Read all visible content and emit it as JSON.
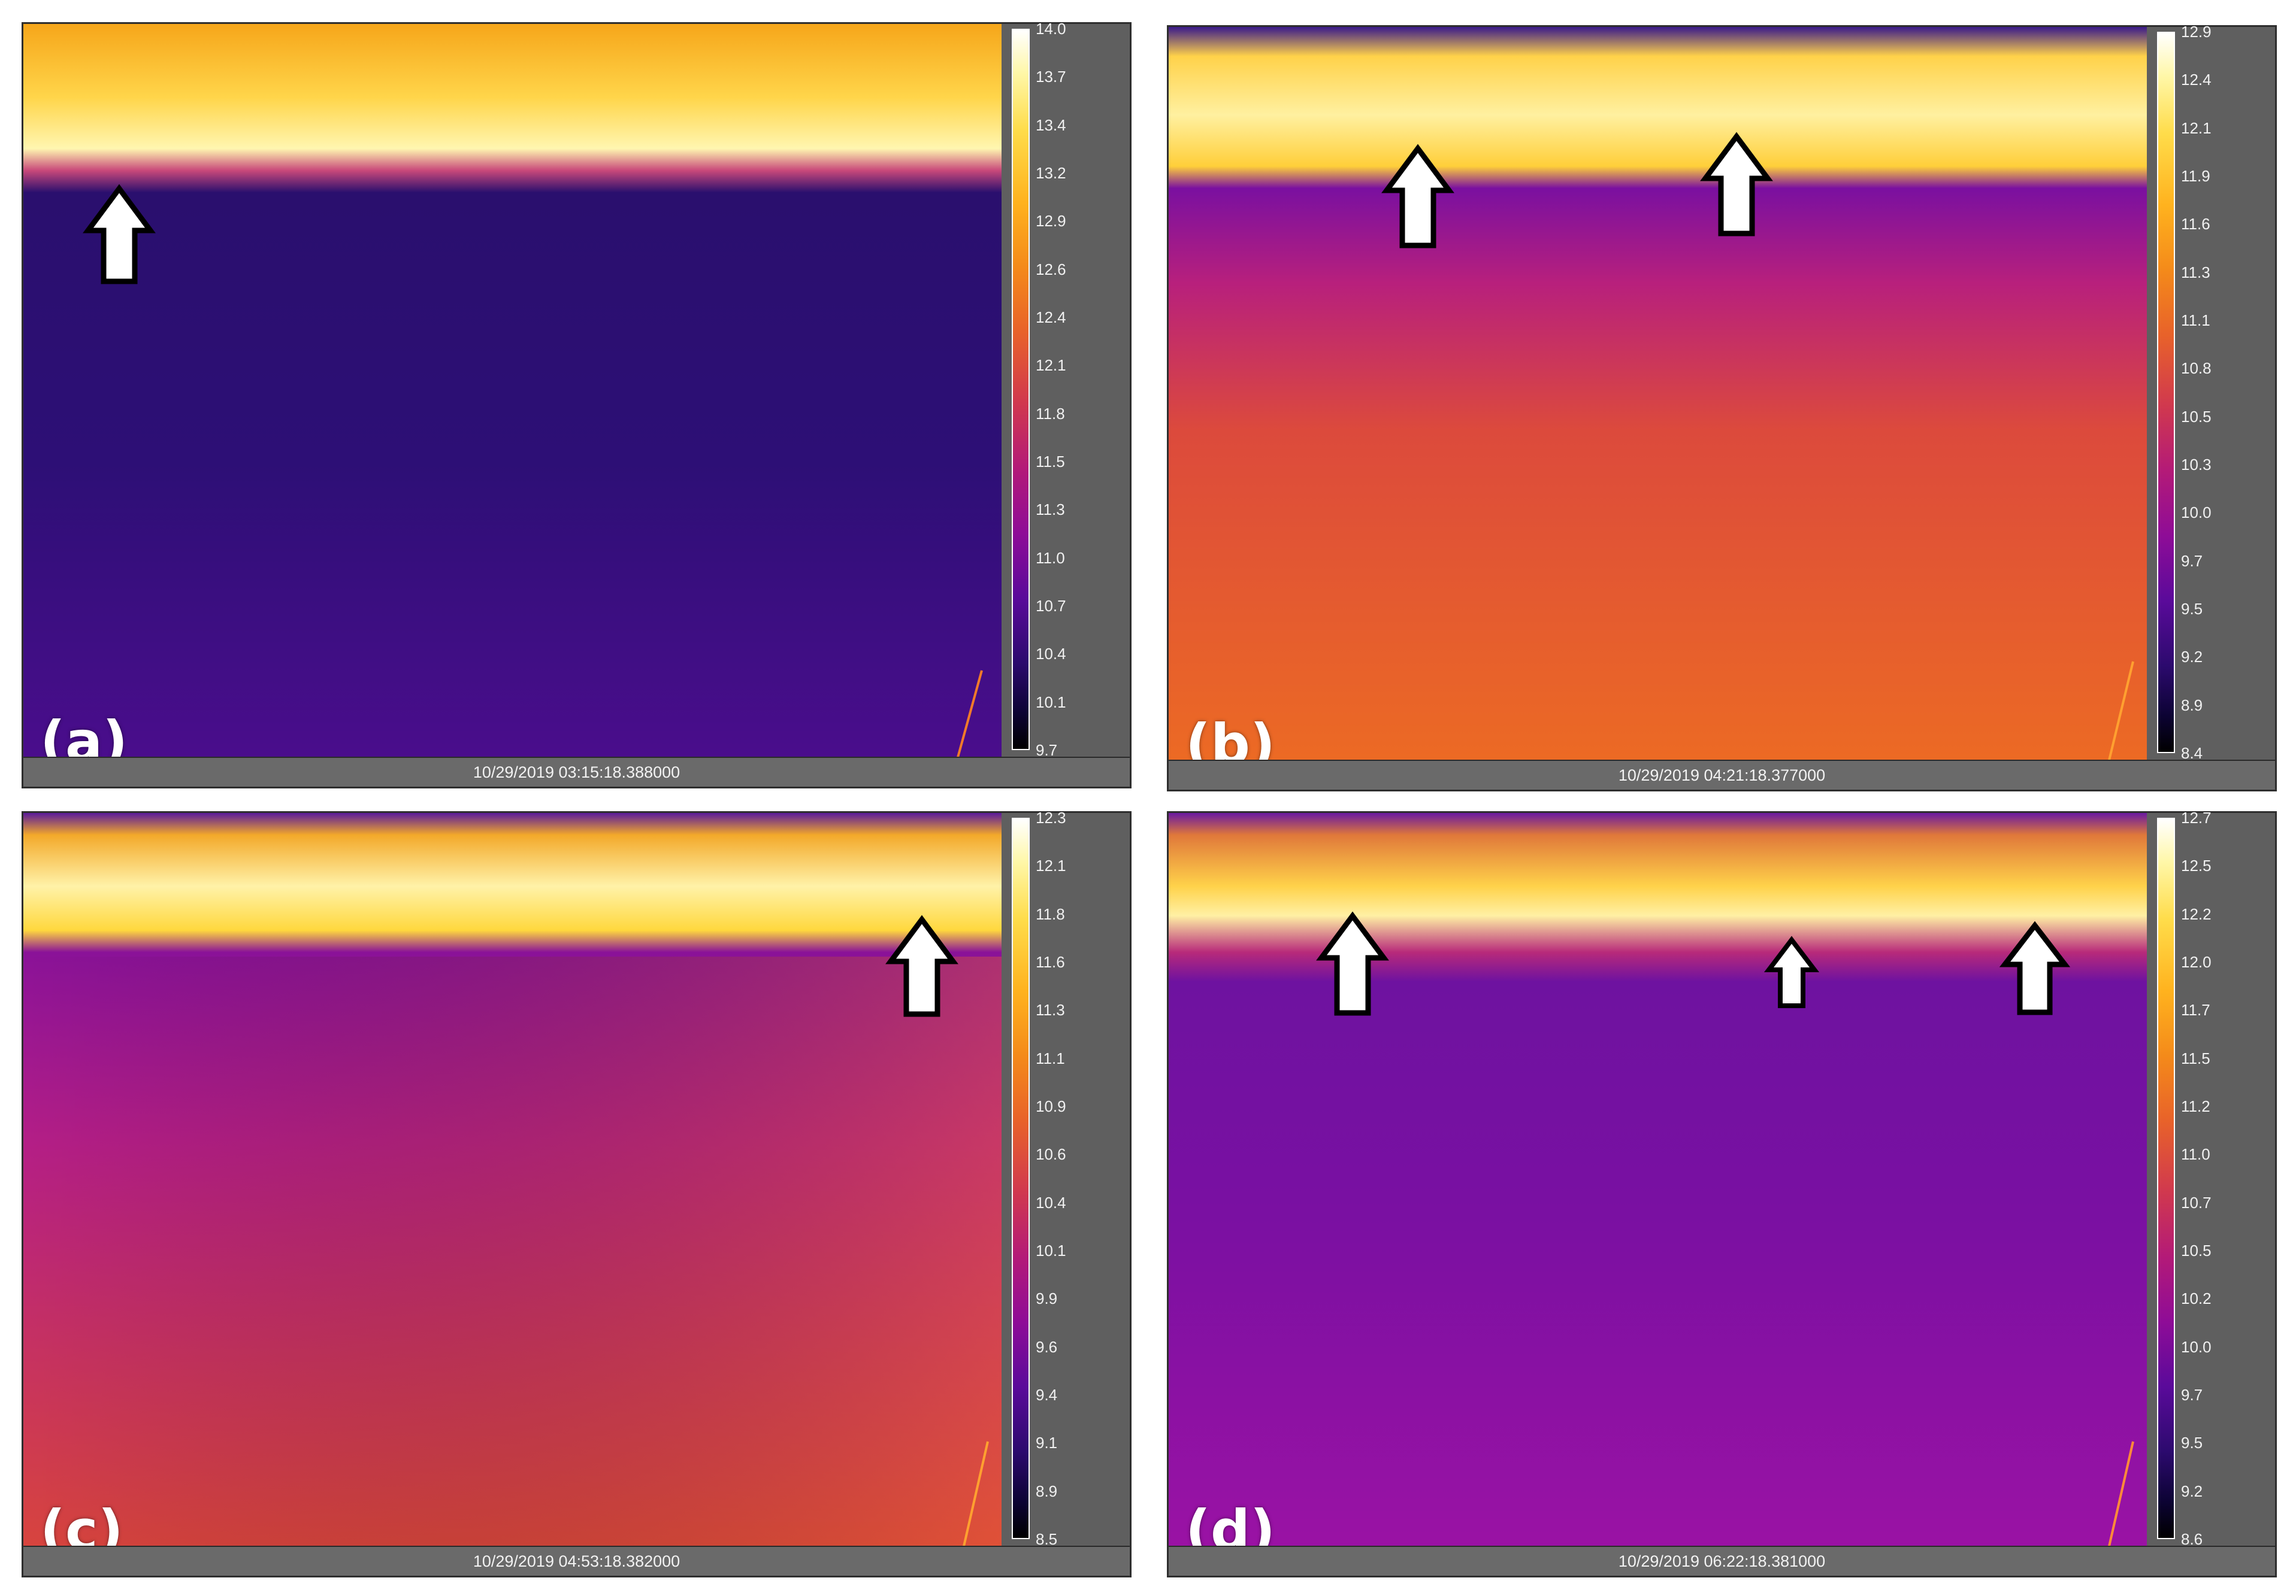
{
  "panels": [
    {
      "label": "(a)",
      "timestamp": "10/29/2019 03:15:18.388000",
      "scale_ticks": [
        "14.0",
        "13.7",
        "13.4",
        "13.2",
        "12.9",
        "12.6",
        "12.4",
        "12.1",
        "11.8",
        "11.5",
        "11.3",
        "11.0",
        "10.7",
        "10.4",
        "10.1",
        "9.7"
      ]
    },
    {
      "label": "(b)",
      "timestamp": "10/29/2019 04:21:18.377000",
      "scale_ticks": [
        "12.9",
        "12.4",
        "12.1",
        "11.9",
        "11.6",
        "11.3",
        "11.1",
        "10.8",
        "10.5",
        "10.3",
        "10.0",
        "9.7",
        "9.5",
        "9.2",
        "8.9",
        "8.4"
      ]
    },
    {
      "label": "(c)",
      "timestamp": "10/29/2019 04:53:18.382000",
      "scale_ticks": [
        "12.3",
        "12.1",
        "11.8",
        "11.6",
        "11.3",
        "11.1",
        "10.9",
        "10.6",
        "10.4",
        "10.1",
        "9.9",
        "9.6",
        "9.4",
        "9.1",
        "8.9",
        "8.5"
      ]
    },
    {
      "label": "(d)",
      "timestamp": "10/29/2019 06:22:18.381000",
      "scale_ticks": [
        "12.7",
        "12.5",
        "12.2",
        "12.0",
        "11.7",
        "11.5",
        "11.2",
        "11.0",
        "10.7",
        "10.5",
        "10.2",
        "10.0",
        "9.7",
        "9.5",
        "9.2",
        "8.6"
      ]
    }
  ],
  "colors": {
    "panel_background": "#5f5f5f",
    "colormap": "inferno-style thermal palette"
  },
  "icons": [
    "up-arrow-icon"
  ]
}
